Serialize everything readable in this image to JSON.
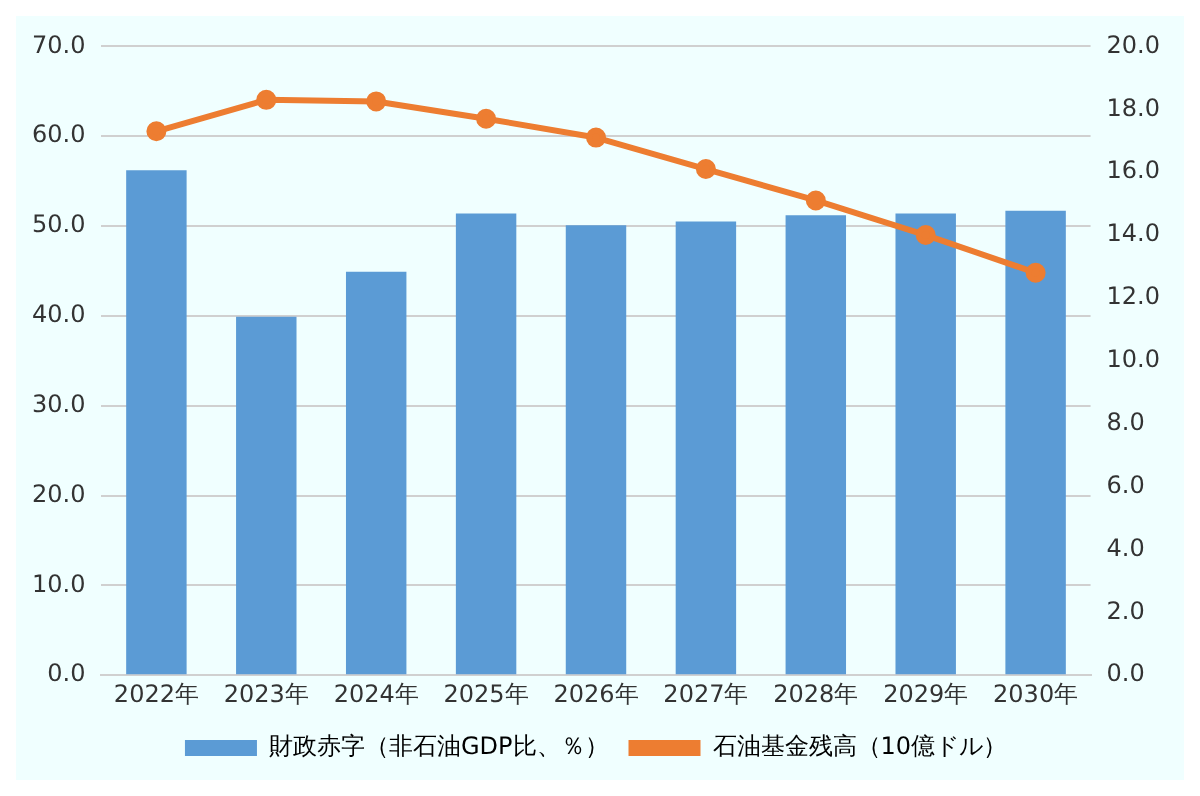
{
  "chart_data": {
    "type": "bar",
    "categories": [
      "2022年",
      "2023年",
      "2024年",
      "2025年",
      "2026年",
      "2027年",
      "2028年",
      "2029年",
      "2030年"
    ],
    "series": [
      {
        "name": "財政赤字（非石油GDP比、％）",
        "color": "#5b9bd5",
        "values": [
          56.2,
          39.9,
          44.9,
          51.4,
          50.1,
          50.5,
          51.2,
          51.4,
          51.7
        ]
      },
      {
        "name": "石油基金残高（10億ドル）",
        "type": "line",
        "axis": "y2",
        "color": "#ed7d31",
        "values": [
          17.3,
          18.3,
          18.25,
          17.7,
          17.1,
          16.1,
          15.1,
          14.0,
          12.8
        ]
      }
    ],
    "ylim": [
      0,
      70
    ],
    "yticks": [
      {
        "value": 0,
        "label": "0.0"
      },
      {
        "value": 10,
        "label": "10.0"
      },
      {
        "value": 20,
        "label": "20.0"
      },
      {
        "value": 30,
        "label": "30.0"
      },
      {
        "value": 40,
        "label": "40.0"
      },
      {
        "value": 50,
        "label": "50.0"
      },
      {
        "value": 60,
        "label": "60.0"
      },
      {
        "value": 70,
        "label": "70.0"
      }
    ],
    "y2lim": [
      0,
      20
    ],
    "y2ticks": [
      {
        "value": 0,
        "label": "0.0"
      },
      {
        "value": 2,
        "label": "2.0"
      },
      {
        "value": 4,
        "label": "4.0"
      },
      {
        "value": 6,
        "label": "6.0"
      },
      {
        "value": 8,
        "label": "8.0"
      },
      {
        "value": 10,
        "label": "10.0"
      },
      {
        "value": 12,
        "label": "12.0"
      },
      {
        "value": 14,
        "label": "14.0"
      },
      {
        "value": 16,
        "label": "16.0"
      },
      {
        "value": 18,
        "label": "18.0"
      },
      {
        "value": 20,
        "label": "20.0"
      }
    ],
    "grid": "y",
    "legend": "bottom",
    "marker": "circle",
    "line_style": "solid"
  }
}
